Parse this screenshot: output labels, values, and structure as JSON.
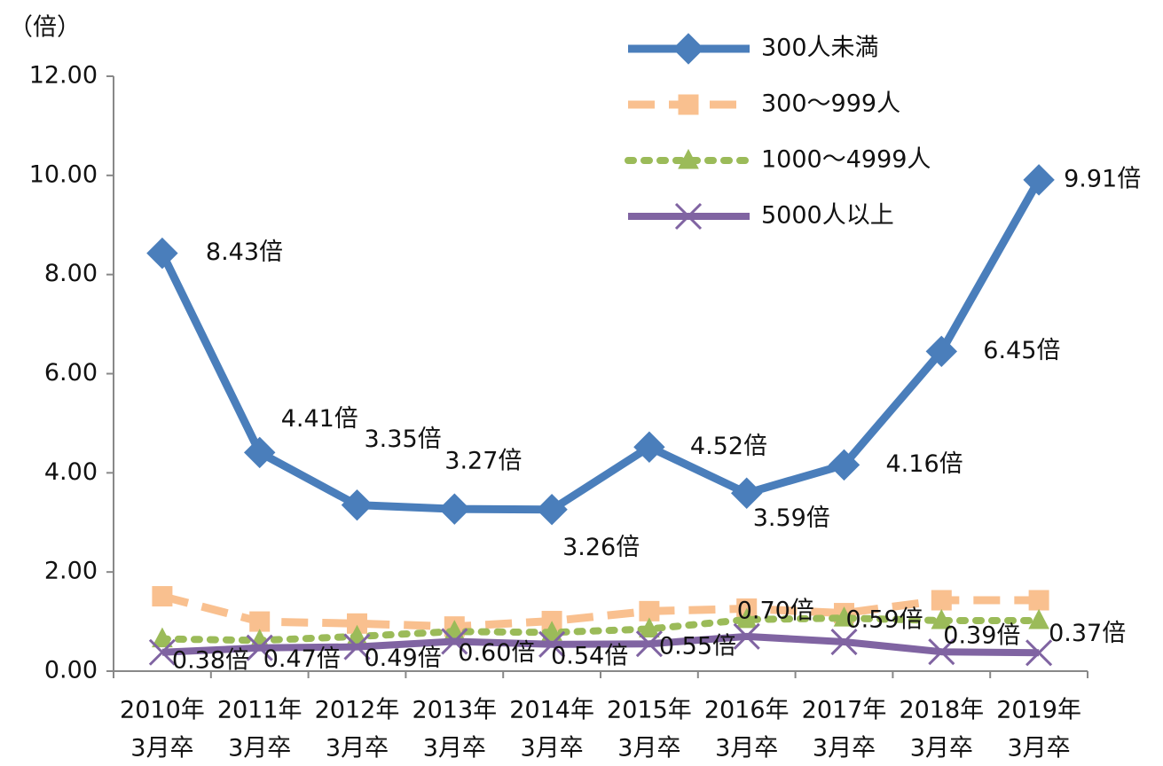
{
  "chart_data": {
    "type": "line",
    "y_unit_label": "（倍）",
    "categories": [
      [
        "2010年",
        "3月卒"
      ],
      [
        "2011年",
        "3月卒"
      ],
      [
        "2012年",
        "3月卒"
      ],
      [
        "2013年",
        "3月卒"
      ],
      [
        "2014年",
        "3月卒"
      ],
      [
        "2015年",
        "3月卒"
      ],
      [
        "2016年",
        "3月卒"
      ],
      [
        "2017年",
        "3月卒"
      ],
      [
        "2018年",
        "3月卒"
      ],
      [
        "2019年",
        "3月卒"
      ]
    ],
    "ylim": [
      0,
      12
    ],
    "yticks": [
      {
        "value": 0,
        "label": "0.00"
      },
      {
        "value": 2,
        "label": "2.00"
      },
      {
        "value": 4,
        "label": "4.00"
      },
      {
        "value": 6,
        "label": "6.00"
      },
      {
        "value": 8,
        "label": "8.00"
      },
      {
        "value": 10,
        "label": "10.00"
      },
      {
        "value": 12,
        "label": "12.00"
      }
    ],
    "series": [
      {
        "name": "300人未満",
        "color": "#4a7ebb",
        "marker": "diamond",
        "dash": "solid",
        "values": [
          8.43,
          4.41,
          3.35,
          3.27,
          3.26,
          4.52,
          3.59,
          4.16,
          6.45,
          9.91
        ],
        "value_labels": [
          "8.43倍",
          "4.41倍",
          "3.35倍",
          "3.27倍",
          "3.26倍",
          "4.52倍",
          "3.59倍",
          "4.16倍",
          "6.45倍",
          "9.91倍"
        ]
      },
      {
        "name": "300～999人",
        "color": "#f9c08f",
        "marker": "square",
        "dash": "dashed",
        "values": [
          1.51,
          1.0,
          0.96,
          0.9,
          1.01,
          1.21,
          1.26,
          1.17,
          1.43,
          1.43
        ]
      },
      {
        "name": "1000～4999人",
        "color": "#9bbb59",
        "marker": "triangle",
        "dash": "dotted",
        "values": [
          0.65,
          0.62,
          0.7,
          0.8,
          0.78,
          0.85,
          1.04,
          1.07,
          1.02,
          1.02
        ]
      },
      {
        "name": "5000人以上",
        "color": "#8064a2",
        "marker": "cross",
        "dash": "solid",
        "values": [
          0.38,
          0.47,
          0.49,
          0.6,
          0.54,
          0.55,
          0.7,
          0.59,
          0.39,
          0.37
        ],
        "value_labels": [
          "0.38倍",
          "0.47倍",
          "0.49倍",
          "0.60倍",
          "0.54倍",
          "0.55倍",
          "0.70倍",
          "0.59倍",
          "0.39倍",
          "0.37倍"
        ]
      }
    ]
  }
}
